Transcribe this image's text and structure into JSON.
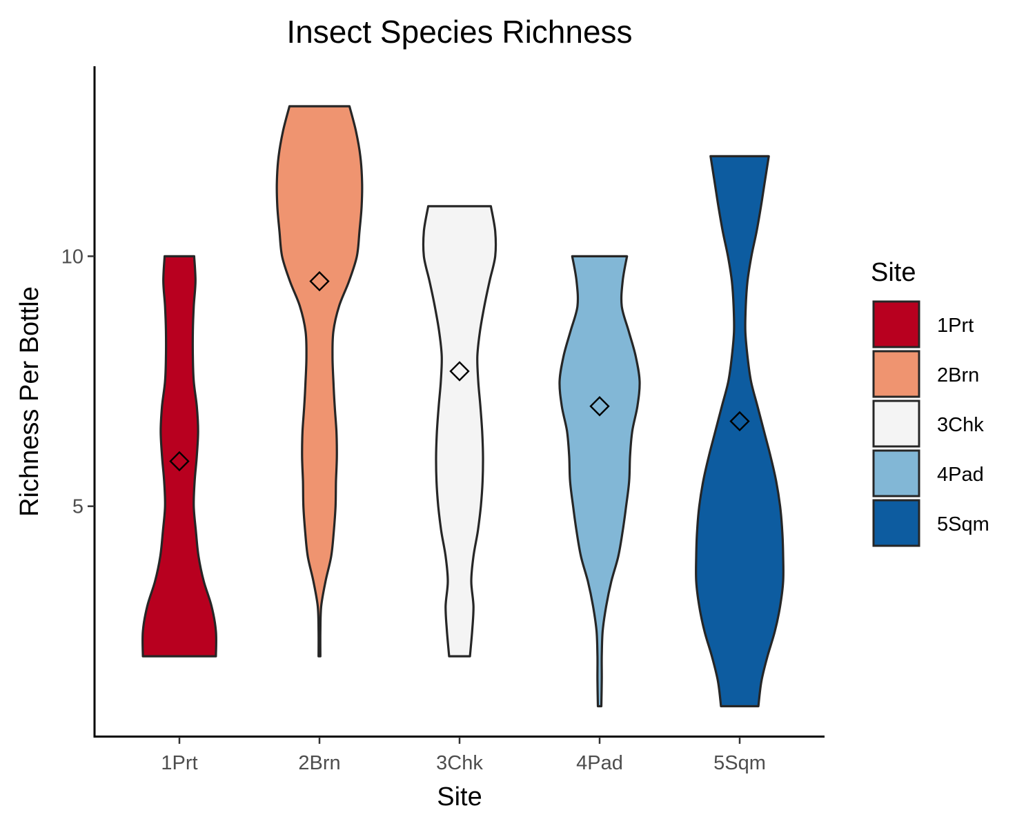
{
  "chart_data": {
    "type": "violin",
    "title": "Insect Species Richness",
    "xlabel": "Site",
    "ylabel": "Richness Per Bottle",
    "categories": [
      "1Prt",
      "2Brn",
      "3Chk",
      "4Pad",
      "5Sqm"
    ],
    "yticks": [
      5,
      10
    ],
    "ylim": [
      0.4,
      13.8
    ],
    "legend": {
      "title": "Site",
      "position": "right",
      "entries": [
        "1Prt",
        "2Brn",
        "3Chk",
        "4Pad",
        "5Sqm"
      ]
    },
    "colors": [
      "#b8001f",
      "#ef9470",
      "#f4f4f4",
      "#82b7d6",
      "#0d5ca0"
    ],
    "series": [
      {
        "category": "1Prt",
        "mean": 5.9,
        "range": [
          2,
          10
        ],
        "density_profile": [
          [
            2,
            0.84
          ],
          [
            2.5,
            0.84
          ],
          [
            3,
            0.74
          ],
          [
            3.5,
            0.56
          ],
          [
            4,
            0.44
          ],
          [
            4.5,
            0.38
          ],
          [
            5,
            0.33
          ],
          [
            5.5,
            0.35
          ],
          [
            6,
            0.4
          ],
          [
            6.5,
            0.43
          ],
          [
            7,
            0.4
          ],
          [
            7.5,
            0.33
          ],
          [
            8,
            0.31
          ],
          [
            8.5,
            0.31
          ],
          [
            9,
            0.33
          ],
          [
            9.5,
            0.37
          ],
          [
            10,
            0.34
          ]
        ]
      },
      {
        "category": "2Brn",
        "mean": 9.5,
        "range": [
          2,
          13
        ],
        "density_profile": [
          [
            2,
            0.02
          ],
          [
            2.5,
            0.02
          ],
          [
            3,
            0.04
          ],
          [
            3.5,
            0.14
          ],
          [
            4,
            0.27
          ],
          [
            4.5,
            0.33
          ],
          [
            5,
            0.37
          ],
          [
            5.5,
            0.38
          ],
          [
            6,
            0.4
          ],
          [
            6.5,
            0.39
          ],
          [
            7,
            0.35
          ],
          [
            7.5,
            0.32
          ],
          [
            8,
            0.3
          ],
          [
            8.5,
            0.32
          ],
          [
            9,
            0.45
          ],
          [
            9.5,
            0.68
          ],
          [
            10,
            0.86
          ],
          [
            10.5,
            0.92
          ],
          [
            11,
            0.97
          ],
          [
            11.5,
            0.98
          ],
          [
            12,
            0.94
          ],
          [
            12.5,
            0.84
          ],
          [
            13,
            0.69
          ]
        ]
      },
      {
        "category": "3Chk",
        "mean": 7.7,
        "range": [
          2,
          11
        ],
        "density_profile": [
          [
            2,
            0.24
          ],
          [
            2.5,
            0.29
          ],
          [
            3,
            0.32
          ],
          [
            3.5,
            0.27
          ],
          [
            4,
            0.32
          ],
          [
            4.5,
            0.42
          ],
          [
            5,
            0.49
          ],
          [
            5.5,
            0.53
          ],
          [
            6,
            0.54
          ],
          [
            6.5,
            0.52
          ],
          [
            7,
            0.48
          ],
          [
            7.5,
            0.43
          ],
          [
            8,
            0.41
          ],
          [
            8.5,
            0.47
          ],
          [
            9,
            0.57
          ],
          [
            9.5,
            0.69
          ],
          [
            10,
            0.82
          ],
          [
            10.5,
            0.82
          ],
          [
            11,
            0.72
          ]
        ]
      },
      {
        "category": "4Pad",
        "mean": 7.0,
        "range": [
          1,
          10
        ],
        "density_profile": [
          [
            1,
            0.04
          ],
          [
            1.5,
            0.05
          ],
          [
            2,
            0.05
          ],
          [
            2.5,
            0.07
          ],
          [
            3,
            0.15
          ],
          [
            3.5,
            0.27
          ],
          [
            4,
            0.43
          ],
          [
            4.5,
            0.53
          ],
          [
            5,
            0.61
          ],
          [
            5.5,
            0.68
          ],
          [
            6,
            0.7
          ],
          [
            6.5,
            0.75
          ],
          [
            7,
            0.87
          ],
          [
            7.5,
            0.92
          ],
          [
            8,
            0.83
          ],
          [
            8.5,
            0.67
          ],
          [
            9,
            0.51
          ],
          [
            9.5,
            0.53
          ],
          [
            10,
            0.63
          ]
        ]
      },
      {
        "category": "5Sqm",
        "mean": 6.7,
        "range": [
          1,
          12
        ],
        "density_profile": [
          [
            1,
            0.43
          ],
          [
            1.5,
            0.5
          ],
          [
            2,
            0.64
          ],
          [
            2.5,
            0.81
          ],
          [
            3,
            0.93
          ],
          [
            3.5,
            1.0
          ],
          [
            4,
            1.0
          ],
          [
            4.5,
            0.98
          ],
          [
            5,
            0.93
          ],
          [
            5.5,
            0.84
          ],
          [
            6,
            0.71
          ],
          [
            6.5,
            0.56
          ],
          [
            7,
            0.41
          ],
          [
            7.5,
            0.26
          ],
          [
            8,
            0.18
          ],
          [
            8.5,
            0.13
          ],
          [
            9,
            0.14
          ],
          [
            9.5,
            0.18
          ],
          [
            10,
            0.27
          ],
          [
            10.5,
            0.39
          ],
          [
            11,
            0.49
          ],
          [
            11.5,
            0.58
          ],
          [
            12,
            0.67
          ]
        ]
      }
    ]
  }
}
